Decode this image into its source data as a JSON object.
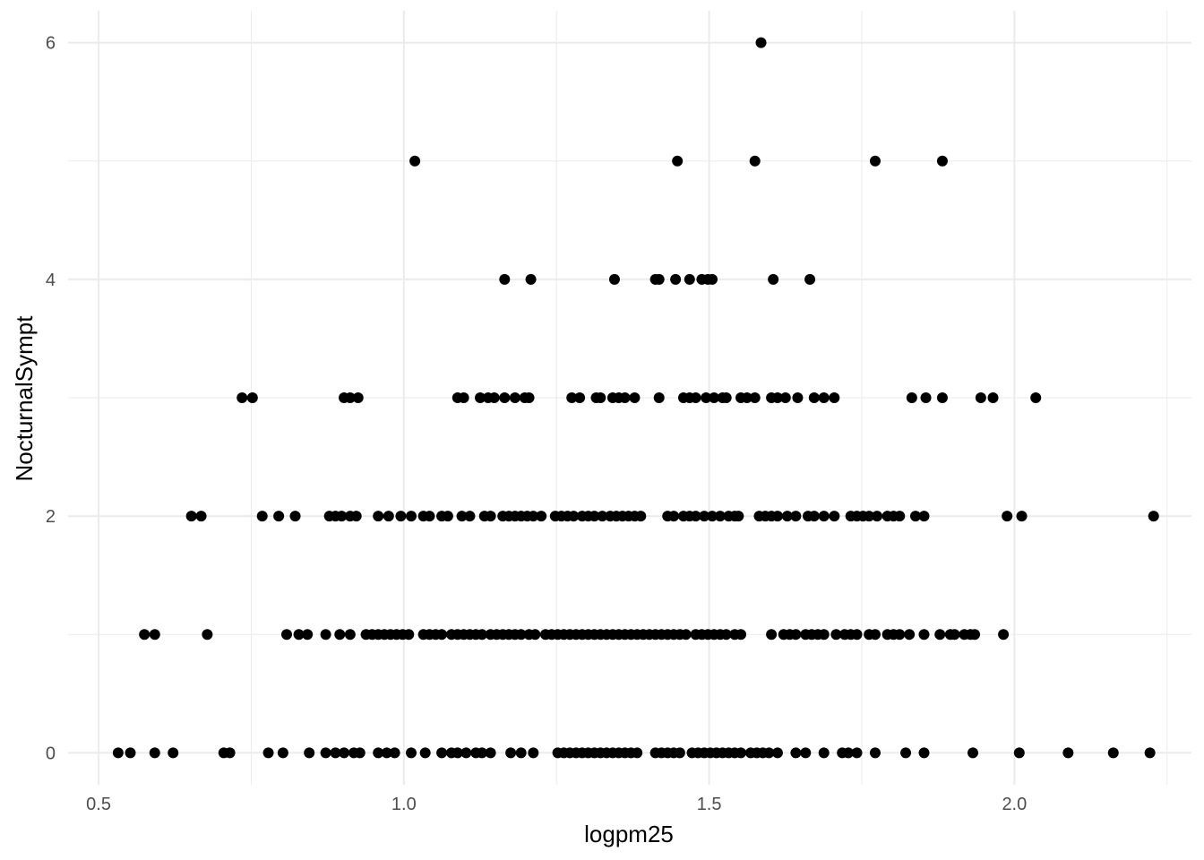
{
  "chart_data": {
    "type": "scatter",
    "title": "",
    "xlabel": "logpm25",
    "ylabel": "NocturnalSympt",
    "xlim": [
      0.45,
      2.29
    ],
    "ylim": [
      -0.27,
      6.27
    ],
    "x_ticks": [
      0.5,
      1.0,
      1.5,
      2.0
    ],
    "x_tick_labels": [
      "0.5",
      "1.0",
      "1.5",
      "2.0"
    ],
    "y_ticks": [
      0,
      2,
      4,
      6
    ],
    "y_tick_labels": [
      "0",
      "2",
      "4",
      "6"
    ],
    "grid": true,
    "legend": "none",
    "point_color": "#000000",
    "series": [
      {
        "points": [
          [
            1.585,
            6
          ],
          [
            1.018,
            5
          ],
          [
            1.448,
            5
          ],
          [
            1.575,
            5
          ],
          [
            1.772,
            5
          ],
          [
            1.882,
            5
          ],
          [
            1.165,
            4
          ],
          [
            1.208,
            4
          ],
          [
            1.345,
            4
          ],
          [
            1.412,
            4
          ],
          [
            1.418,
            4
          ],
          [
            1.445,
            4
          ],
          [
            1.468,
            4
          ],
          [
            1.488,
            4
          ],
          [
            1.498,
            4
          ],
          [
            1.505,
            4
          ],
          [
            1.605,
            4
          ],
          [
            1.665,
            4
          ],
          [
            0.735,
            3
          ],
          [
            0.752,
            3
          ],
          [
            0.902,
            3
          ],
          [
            0.912,
            3
          ],
          [
            0.925,
            3
          ],
          [
            1.088,
            3
          ],
          [
            1.098,
            3
          ],
          [
            1.125,
            3
          ],
          [
            1.138,
            3
          ],
          [
            1.148,
            3
          ],
          [
            1.165,
            3
          ],
          [
            1.182,
            3
          ],
          [
            1.198,
            3
          ],
          [
            1.205,
            3
          ],
          [
            1.275,
            3
          ],
          [
            1.288,
            3
          ],
          [
            1.315,
            3
          ],
          [
            1.322,
            3
          ],
          [
            1.342,
            3
          ],
          [
            1.352,
            3
          ],
          [
            1.362,
            3
          ],
          [
            1.378,
            3
          ],
          [
            1.418,
            3
          ],
          [
            1.458,
            3
          ],
          [
            1.468,
            3
          ],
          [
            1.478,
            3
          ],
          [
            1.495,
            3
          ],
          [
            1.508,
            3
          ],
          [
            1.522,
            3
          ],
          [
            1.528,
            3
          ],
          [
            1.552,
            3
          ],
          [
            1.562,
            3
          ],
          [
            1.575,
            3
          ],
          [
            1.602,
            3
          ],
          [
            1.612,
            3
          ],
          [
            1.625,
            3
          ],
          [
            1.645,
            3
          ],
          [
            1.672,
            3
          ],
          [
            1.688,
            3
          ],
          [
            1.705,
            3
          ],
          [
            1.832,
            3
          ],
          [
            1.855,
            3
          ],
          [
            1.882,
            3
          ],
          [
            1.945,
            3
          ],
          [
            1.965,
            3
          ],
          [
            2.035,
            3
          ],
          [
            0.652,
            2
          ],
          [
            0.668,
            2
          ],
          [
            0.768,
            2
          ],
          [
            0.795,
            2
          ],
          [
            0.822,
            2
          ],
          [
            0.878,
            2
          ],
          [
            0.888,
            2
          ],
          [
            0.898,
            2
          ],
          [
            0.912,
            2
          ],
          [
            0.922,
            2
          ],
          [
            0.958,
            2
          ],
          [
            0.975,
            2
          ],
          [
            0.995,
            2
          ],
          [
            1.012,
            2
          ],
          [
            1.032,
            2
          ],
          [
            1.042,
            2
          ],
          [
            1.062,
            2
          ],
          [
            1.072,
            2
          ],
          [
            1.095,
            2
          ],
          [
            1.108,
            2
          ],
          [
            1.132,
            2
          ],
          [
            1.142,
            2
          ],
          [
            1.162,
            2
          ],
          [
            1.172,
            2
          ],
          [
            1.182,
            2
          ],
          [
            1.192,
            2
          ],
          [
            1.202,
            2
          ],
          [
            1.212,
            2
          ],
          [
            1.225,
            2
          ],
          [
            1.248,
            2
          ],
          [
            1.258,
            2
          ],
          [
            1.268,
            2
          ],
          [
            1.278,
            2
          ],
          [
            1.292,
            2
          ],
          [
            1.302,
            2
          ],
          [
            1.312,
            2
          ],
          [
            1.325,
            2
          ],
          [
            1.338,
            2
          ],
          [
            1.348,
            2
          ],
          [
            1.358,
            2
          ],
          [
            1.368,
            2
          ],
          [
            1.378,
            2
          ],
          [
            1.388,
            2
          ],
          [
            1.432,
            2
          ],
          [
            1.442,
            2
          ],
          [
            1.458,
            2
          ],
          [
            1.468,
            2
          ],
          [
            1.478,
            2
          ],
          [
            1.492,
            2
          ],
          [
            1.505,
            2
          ],
          [
            1.518,
            2
          ],
          [
            1.532,
            2
          ],
          [
            1.542,
            2
          ],
          [
            1.548,
            2
          ],
          [
            1.582,
            2
          ],
          [
            1.592,
            2
          ],
          [
            1.602,
            2
          ],
          [
            1.612,
            2
          ],
          [
            1.628,
            2
          ],
          [
            1.642,
            2
          ],
          [
            1.662,
            2
          ],
          [
            1.672,
            2
          ],
          [
            1.688,
            2
          ],
          [
            1.705,
            2
          ],
          [
            1.732,
            2
          ],
          [
            1.742,
            2
          ],
          [
            1.752,
            2
          ],
          [
            1.762,
            2
          ],
          [
            1.775,
            2
          ],
          [
            1.792,
            2
          ],
          [
            1.802,
            2
          ],
          [
            1.812,
            2
          ],
          [
            1.838,
            2
          ],
          [
            1.852,
            2
          ],
          [
            1.988,
            2
          ],
          [
            2.012,
            2
          ],
          [
            2.228,
            2
          ],
          [
            0.575,
            1
          ],
          [
            0.592,
            1
          ],
          [
            0.678,
            1
          ],
          [
            0.808,
            1
          ],
          [
            0.828,
            1
          ],
          [
            0.842,
            1
          ],
          [
            0.872,
            1
          ],
          [
            0.895,
            1
          ],
          [
            0.912,
            1
          ],
          [
            0.938,
            1
          ],
          [
            0.948,
            1
          ],
          [
            0.958,
            1
          ],
          [
            0.968,
            1
          ],
          [
            0.978,
            1
          ],
          [
            0.988,
            1
          ],
          [
            0.998,
            1
          ],
          [
            1.008,
            1
          ],
          [
            1.032,
            1
          ],
          [
            1.042,
            1
          ],
          [
            1.052,
            1
          ],
          [
            1.062,
            1
          ],
          [
            1.078,
            1
          ],
          [
            1.088,
            1
          ],
          [
            1.098,
            1
          ],
          [
            1.108,
            1
          ],
          [
            1.118,
            1
          ],
          [
            1.128,
            1
          ],
          [
            1.142,
            1
          ],
          [
            1.152,
            1
          ],
          [
            1.162,
            1
          ],
          [
            1.172,
            1
          ],
          [
            1.182,
            1
          ],
          [
            1.192,
            1
          ],
          [
            1.205,
            1
          ],
          [
            1.215,
            1
          ],
          [
            1.232,
            1
          ],
          [
            1.242,
            1
          ],
          [
            1.252,
            1
          ],
          [
            1.262,
            1
          ],
          [
            1.272,
            1
          ],
          [
            1.282,
            1
          ],
          [
            1.292,
            1
          ],
          [
            1.302,
            1
          ],
          [
            1.312,
            1
          ],
          [
            1.322,
            1
          ],
          [
            1.332,
            1
          ],
          [
            1.342,
            1
          ],
          [
            1.352,
            1
          ],
          [
            1.362,
            1
          ],
          [
            1.372,
            1
          ],
          [
            1.382,
            1
          ],
          [
            1.392,
            1
          ],
          [
            1.402,
            1
          ],
          [
            1.412,
            1
          ],
          [
            1.422,
            1
          ],
          [
            1.432,
            1
          ],
          [
            1.442,
            1
          ],
          [
            1.452,
            1
          ],
          [
            1.462,
            1
          ],
          [
            1.478,
            1
          ],
          [
            1.488,
            1
          ],
          [
            1.498,
            1
          ],
          [
            1.508,
            1
          ],
          [
            1.518,
            1
          ],
          [
            1.528,
            1
          ],
          [
            1.542,
            1
          ],
          [
            1.552,
            1
          ],
          [
            1.602,
            1
          ],
          [
            1.622,
            1
          ],
          [
            1.632,
            1
          ],
          [
            1.642,
            1
          ],
          [
            1.658,
            1
          ],
          [
            1.668,
            1
          ],
          [
            1.678,
            1
          ],
          [
            1.688,
            1
          ],
          [
            1.708,
            1
          ],
          [
            1.722,
            1
          ],
          [
            1.732,
            1
          ],
          [
            1.742,
            1
          ],
          [
            1.762,
            1
          ],
          [
            1.772,
            1
          ],
          [
            1.792,
            1
          ],
          [
            1.802,
            1
          ],
          [
            1.812,
            1
          ],
          [
            1.828,
            1
          ],
          [
            1.852,
            1
          ],
          [
            1.878,
            1
          ],
          [
            1.895,
            1
          ],
          [
            1.902,
            1
          ],
          [
            1.918,
            1
          ],
          [
            1.928,
            1
          ],
          [
            1.935,
            1
          ],
          [
            1.982,
            1
          ],
          [
            0.532,
            0
          ],
          [
            0.552,
            0
          ],
          [
            0.592,
            0
          ],
          [
            0.622,
            0
          ],
          [
            0.705,
            0
          ],
          [
            0.715,
            0
          ],
          [
            0.778,
            0
          ],
          [
            0.802,
            0
          ],
          [
            0.845,
            0
          ],
          [
            0.872,
            0
          ],
          [
            0.888,
            0
          ],
          [
            0.902,
            0
          ],
          [
            0.918,
            0
          ],
          [
            0.928,
            0
          ],
          [
            0.958,
            0
          ],
          [
            0.972,
            0
          ],
          [
            0.985,
            0
          ],
          [
            1.012,
            0
          ],
          [
            1.035,
            0
          ],
          [
            1.062,
            0
          ],
          [
            1.078,
            0
          ],
          [
            1.088,
            0
          ],
          [
            1.102,
            0
          ],
          [
            1.118,
            0
          ],
          [
            1.128,
            0
          ],
          [
            1.142,
            0
          ],
          [
            1.175,
            0
          ],
          [
            1.192,
            0
          ],
          [
            1.212,
            0
          ],
          [
            1.252,
            0
          ],
          [
            1.262,
            0
          ],
          [
            1.272,
            0
          ],
          [
            1.282,
            0
          ],
          [
            1.292,
            0
          ],
          [
            1.302,
            0
          ],
          [
            1.312,
            0
          ],
          [
            1.322,
            0
          ],
          [
            1.332,
            0
          ],
          [
            1.342,
            0
          ],
          [
            1.352,
            0
          ],
          [
            1.362,
            0
          ],
          [
            1.372,
            0
          ],
          [
            1.382,
            0
          ],
          [
            1.412,
            0
          ],
          [
            1.422,
            0
          ],
          [
            1.432,
            0
          ],
          [
            1.442,
            0
          ],
          [
            1.452,
            0
          ],
          [
            1.472,
            0
          ],
          [
            1.482,
            0
          ],
          [
            1.492,
            0
          ],
          [
            1.502,
            0
          ],
          [
            1.512,
            0
          ],
          [
            1.522,
            0
          ],
          [
            1.532,
            0
          ],
          [
            1.542,
            0
          ],
          [
            1.552,
            0
          ],
          [
            1.568,
            0
          ],
          [
            1.578,
            0
          ],
          [
            1.588,
            0
          ],
          [
            1.598,
            0
          ],
          [
            1.612,
            0
          ],
          [
            1.642,
            0
          ],
          [
            1.658,
            0
          ],
          [
            1.688,
            0
          ],
          [
            1.718,
            0
          ],
          [
            1.728,
            0
          ],
          [
            1.742,
            0
          ],
          [
            1.772,
            0
          ],
          [
            1.822,
            0
          ],
          [
            1.852,
            0
          ],
          [
            1.932,
            0
          ],
          [
            2.008,
            0
          ],
          [
            2.088,
            0
          ],
          [
            2.162,
            0
          ],
          [
            2.222,
            0
          ]
        ]
      }
    ]
  }
}
